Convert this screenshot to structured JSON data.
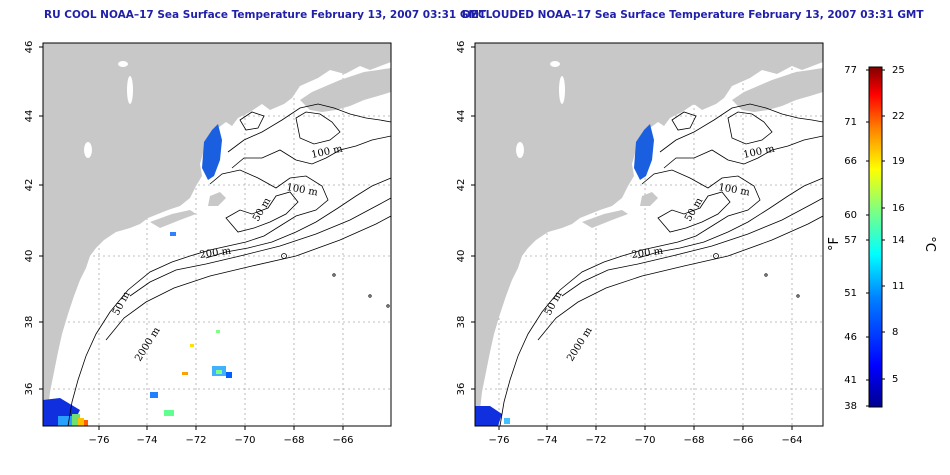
{
  "titles": {
    "left": "RU COOL NOAA–17 Sea Surface Temperature February 13, 2007 03:31 GMT",
    "right": "DECLOUDED NOAA–17 Sea Surface Temperature February 13, 2007 03:31 GMT"
  },
  "axes": {
    "x_ticks": [
      "−76",
      "−74",
      "−72",
      "−70",
      "−68",
      "−66",
      "−64"
    ],
    "x_values": [
      -76,
      -74,
      -72,
      -70,
      -68,
      -66,
      -64
    ],
    "y_ticks": [
      "36",
      "38",
      "40",
      "42",
      "44",
      "46"
    ],
    "y_values": [
      36,
      38,
      40,
      42,
      44,
      46
    ],
    "lon_range": [
      -77.3,
      -63.0
    ],
    "lat_range": [
      35.0,
      46.0
    ]
  },
  "contour_labels": [
    "100 m",
    "100 m",
    "50 m",
    "200 m",
    "50 m",
    "2000 m"
  ],
  "colorbar": {
    "fahrenheit_ticks": [
      "77",
      "71",
      "66",
      "60",
      "57",
      "51",
      "46",
      "41",
      "38"
    ],
    "celsius_ticks": [
      "25",
      "22",
      "19",
      "16",
      "14",
      "11",
      "8",
      "5"
    ],
    "fahrenheit_unit": "°F",
    "celsius_unit": "°C",
    "range_c": [
      3.3,
      25
    ],
    "colors": [
      "#00008f",
      "#0000ff",
      "#0080ff",
      "#00ffff",
      "#80ff80",
      "#ffff00",
      "#ff8000",
      "#ff0000",
      "#800000"
    ]
  },
  "colors": {
    "land": "#c8c8c8",
    "ocean": "#ffffff",
    "contour": "#000000",
    "grid": "#aaaaaa",
    "title": "#1f1fa8"
  }
}
